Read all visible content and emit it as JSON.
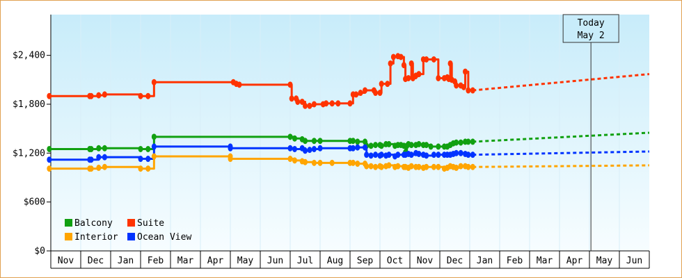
{
  "chart_data": {
    "type": "line",
    "title": "",
    "xlabel": "",
    "ylabel": "",
    "ylim": [
      0,
      2900
    ],
    "y_ticks": [
      {
        "value": 0,
        "label": "$0"
      },
      {
        "value": 600,
        "label": "$600"
      },
      {
        "value": 1200,
        "label": "$1,200"
      },
      {
        "value": 1800,
        "label": "$1,800"
      },
      {
        "value": 2400,
        "label": "$2,400"
      }
    ],
    "x_ticks": [
      "Nov",
      "Dec",
      "Jan",
      "Feb",
      "Mar",
      "Apr",
      "May",
      "Jun",
      "Jul",
      "Aug",
      "Sep",
      "Oct",
      "Nov",
      "Dec",
      "Jan",
      "Feb",
      "Mar",
      "Apr",
      "May",
      "Jun"
    ],
    "xlim": [
      -0.5,
      19.5
    ],
    "grid": "x-only",
    "legend_position": "bottom-left",
    "today_marker": {
      "line1": "Today",
      "line2": "May 2",
      "x": 17.55
    },
    "series": [
      {
        "name": "Suite",
        "color": "#ff3300",
        "points": [
          [
            -0.55,
            1900
          ],
          [
            0.8,
            1900
          ],
          [
            0.85,
            1900
          ],
          [
            1.1,
            1910
          ],
          [
            1.3,
            1920
          ],
          [
            2.5,
            1900
          ],
          [
            2.75,
            1900
          ],
          [
            2.95,
            2070
          ],
          [
            5.6,
            2070
          ],
          [
            5.7,
            2050
          ],
          [
            5.8,
            2040
          ],
          [
            7.5,
            2040
          ],
          [
            7.55,
            1870
          ],
          [
            7.7,
            1870
          ],
          [
            7.75,
            1830
          ],
          [
            7.9,
            1830
          ],
          [
            8.0,
            1780
          ],
          [
            8.15,
            1780
          ],
          [
            8.3,
            1800
          ],
          [
            8.6,
            1800
          ],
          [
            8.7,
            1810
          ],
          [
            8.9,
            1810
          ],
          [
            9.1,
            1810
          ],
          [
            9.5,
            1810
          ],
          [
            9.6,
            1920
          ],
          [
            9.7,
            1920
          ],
          [
            9.85,
            1940
          ],
          [
            10.0,
            1970
          ],
          [
            10.3,
            1970
          ],
          [
            10.35,
            1940
          ],
          [
            10.5,
            1940
          ],
          [
            10.55,
            2050
          ],
          [
            10.75,
            2050
          ],
          [
            10.85,
            2300
          ],
          [
            10.95,
            2380
          ],
          [
            11.1,
            2390
          ],
          [
            11.2,
            2380
          ],
          [
            11.3,
            2280
          ],
          [
            11.35,
            2110
          ],
          [
            11.45,
            2120
          ],
          [
            11.55,
            2300
          ],
          [
            11.6,
            2120
          ],
          [
            11.7,
            2150
          ],
          [
            11.8,
            2170
          ],
          [
            11.95,
            2350
          ],
          [
            12.05,
            2350
          ],
          [
            12.3,
            2350
          ],
          [
            12.45,
            2120
          ],
          [
            12.65,
            2120
          ],
          [
            12.75,
            2130
          ],
          [
            12.8,
            2110
          ],
          [
            12.85,
            2300
          ],
          [
            12.9,
            2100
          ],
          [
            13.0,
            2080
          ],
          [
            13.05,
            2030
          ],
          [
            13.2,
            2030
          ],
          [
            13.3,
            2010
          ],
          [
            13.35,
            2200
          ],
          [
            13.45,
            1970
          ],
          [
            13.6,
            1970
          ]
        ]
      },
      {
        "name": "Balcony",
        "color": "#11a011",
        "points": [
          [
            -0.55,
            1250
          ],
          [
            0.8,
            1250
          ],
          [
            0.85,
            1250
          ],
          [
            1.1,
            1260
          ],
          [
            1.3,
            1260
          ],
          [
            2.5,
            1250
          ],
          [
            2.75,
            1250
          ],
          [
            2.95,
            1400
          ],
          [
            7.5,
            1400
          ],
          [
            7.65,
            1380
          ],
          [
            7.9,
            1370
          ],
          [
            8.0,
            1350
          ],
          [
            8.3,
            1350
          ],
          [
            8.5,
            1350
          ],
          [
            9.5,
            1350
          ],
          [
            9.6,
            1350
          ],
          [
            9.75,
            1340
          ],
          [
            10.0,
            1340
          ],
          [
            10.05,
            1290
          ],
          [
            10.2,
            1290
          ],
          [
            10.35,
            1300
          ],
          [
            10.5,
            1300
          ],
          [
            10.55,
            1290
          ],
          [
            10.7,
            1310
          ],
          [
            10.8,
            1310
          ],
          [
            11.0,
            1290
          ],
          [
            11.1,
            1300
          ],
          [
            11.2,
            1300
          ],
          [
            11.3,
            1290
          ],
          [
            11.35,
            1210
          ],
          [
            11.4,
            1290
          ],
          [
            11.45,
            1310
          ],
          [
            11.55,
            1300
          ],
          [
            11.7,
            1300
          ],
          [
            11.8,
            1310
          ],
          [
            11.95,
            1300
          ],
          [
            12.05,
            1300
          ],
          [
            12.2,
            1280
          ],
          [
            12.45,
            1280
          ],
          [
            12.65,
            1280
          ],
          [
            12.75,
            1280
          ],
          [
            12.85,
            1300
          ],
          [
            12.95,
            1320
          ],
          [
            13.05,
            1330
          ],
          [
            13.2,
            1330
          ],
          [
            13.35,
            1340
          ],
          [
            13.45,
            1340
          ],
          [
            13.6,
            1340
          ]
        ]
      },
      {
        "name": "Ocean View",
        "color": "#0033ff",
        "points": [
          [
            -0.55,
            1120
          ],
          [
            0.8,
            1120
          ],
          [
            0.85,
            1120
          ],
          [
            1.1,
            1150
          ],
          [
            1.3,
            1150
          ],
          [
            2.5,
            1130
          ],
          [
            2.75,
            1130
          ],
          [
            2.95,
            1280
          ],
          [
            5.5,
            1280
          ],
          [
            5.5,
            1260
          ],
          [
            7.5,
            1260
          ],
          [
            7.65,
            1250
          ],
          [
            7.9,
            1260
          ],
          [
            8.0,
            1230
          ],
          [
            8.15,
            1240
          ],
          [
            8.3,
            1250
          ],
          [
            8.5,
            1260
          ],
          [
            9.5,
            1260
          ],
          [
            9.6,
            1260
          ],
          [
            9.75,
            1270
          ],
          [
            10.0,
            1270
          ],
          [
            10.05,
            1180
          ],
          [
            10.2,
            1170
          ],
          [
            10.35,
            1180
          ],
          [
            10.5,
            1170
          ],
          [
            10.55,
            1180
          ],
          [
            10.7,
            1170
          ],
          [
            10.8,
            1180
          ],
          [
            11.0,
            1160
          ],
          [
            11.1,
            1180
          ],
          [
            11.3,
            1180
          ],
          [
            11.35,
            1180
          ],
          [
            11.45,
            1190
          ],
          [
            11.55,
            1180
          ],
          [
            11.7,
            1200
          ],
          [
            11.8,
            1190
          ],
          [
            11.95,
            1180
          ],
          [
            12.05,
            1170
          ],
          [
            12.3,
            1180
          ],
          [
            12.45,
            1180
          ],
          [
            12.65,
            1180
          ],
          [
            12.75,
            1180
          ],
          [
            12.85,
            1180
          ],
          [
            12.95,
            1190
          ],
          [
            13.05,
            1200
          ],
          [
            13.2,
            1200
          ],
          [
            13.35,
            1190
          ],
          [
            13.45,
            1180
          ],
          [
            13.6,
            1180
          ]
        ]
      },
      {
        "name": "Interior",
        "color": "#ffa500",
        "points": [
          [
            -0.55,
            1010
          ],
          [
            0.8,
            1010
          ],
          [
            0.85,
            1010
          ],
          [
            1.1,
            1020
          ],
          [
            1.3,
            1030
          ],
          [
            2.5,
            1010
          ],
          [
            2.75,
            1010
          ],
          [
            2.95,
            1160
          ],
          [
            5.5,
            1160
          ],
          [
            5.5,
            1130
          ],
          [
            7.5,
            1130
          ],
          [
            7.65,
            1110
          ],
          [
            7.9,
            1100
          ],
          [
            8.0,
            1090
          ],
          [
            8.3,
            1080
          ],
          [
            8.5,
            1080
          ],
          [
            8.9,
            1080
          ],
          [
            9.5,
            1080
          ],
          [
            9.6,
            1080
          ],
          [
            9.75,
            1070
          ],
          [
            10.0,
            1070
          ],
          [
            10.05,
            1040
          ],
          [
            10.2,
            1040
          ],
          [
            10.35,
            1030
          ],
          [
            10.5,
            1040
          ],
          [
            10.55,
            1030
          ],
          [
            10.7,
            1040
          ],
          [
            10.8,
            1050
          ],
          [
            11.0,
            1030
          ],
          [
            11.1,
            1040
          ],
          [
            11.3,
            1030
          ],
          [
            11.35,
            1030
          ],
          [
            11.45,
            1020
          ],
          [
            11.55,
            1040
          ],
          [
            11.7,
            1030
          ],
          [
            11.8,
            1030
          ],
          [
            11.95,
            1020
          ],
          [
            12.05,
            1030
          ],
          [
            12.3,
            1030
          ],
          [
            12.45,
            1030
          ],
          [
            12.65,
            1010
          ],
          [
            12.75,
            1020
          ],
          [
            12.85,
            1040
          ],
          [
            12.95,
            1030
          ],
          [
            13.05,
            1020
          ],
          [
            13.2,
            1040
          ],
          [
            13.35,
            1040
          ],
          [
            13.45,
            1030
          ],
          [
            13.6,
            1030
          ]
        ]
      }
    ],
    "forecast": [
      {
        "name": "Suite",
        "color": "#ff3300",
        "points": [
          [
            13.6,
            1970
          ],
          [
            19.5,
            2170
          ]
        ]
      },
      {
        "name": "Balcony",
        "color": "#11a011",
        "points": [
          [
            13.6,
            1340
          ],
          [
            19.5,
            1450
          ]
        ]
      },
      {
        "name": "Ocean View",
        "color": "#0033ff",
        "points": [
          [
            13.6,
            1180
          ],
          [
            19.5,
            1220
          ]
        ]
      },
      {
        "name": "Interior",
        "color": "#ffa500",
        "points": [
          [
            13.6,
            1030
          ],
          [
            19.5,
            1050
          ]
        ]
      }
    ],
    "legend": [
      {
        "label": "Balcony",
        "color": "#11a011"
      },
      {
        "label": "Suite",
        "color": "#ff3300"
      },
      {
        "label": "Interior",
        "color": "#ffa500"
      },
      {
        "label": "Ocean View",
        "color": "#0033ff"
      }
    ]
  }
}
